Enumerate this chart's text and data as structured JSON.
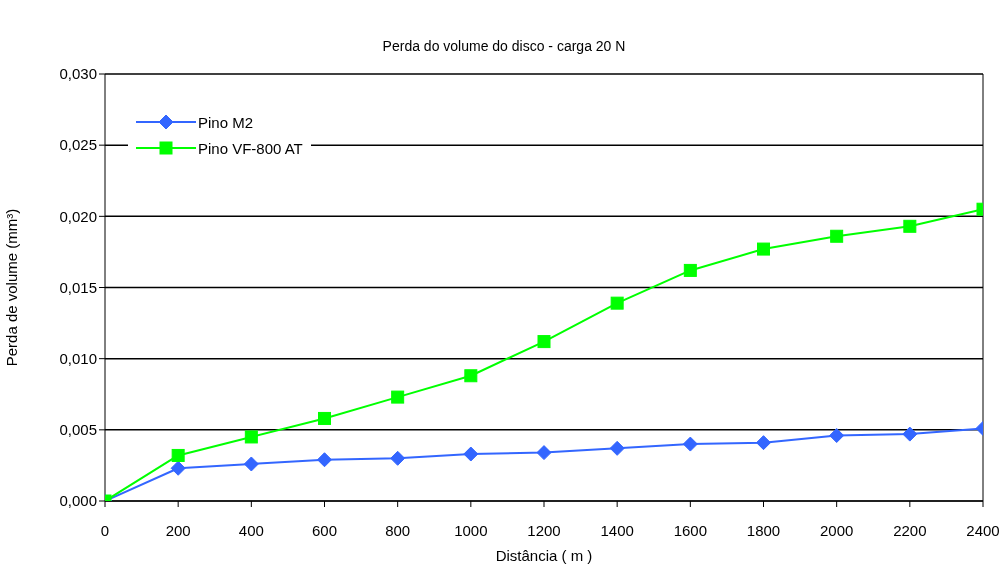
{
  "chart_data": {
    "type": "line",
    "title": "Perda do volume do disco - carga 20 N",
    "xlabel": "Distância ( m )",
    "ylabel": "Perda de volume (mm³)",
    "x": [
      0,
      200,
      400,
      600,
      800,
      1000,
      1200,
      1400,
      1600,
      1800,
      2000,
      2200,
      2400
    ],
    "series": [
      {
        "name": "Pino M2",
        "color": "#3366ff",
        "marker": "diamond",
        "values": [
          0,
          0.0023,
          0.0026,
          0.0029,
          0.003,
          0.0033,
          0.0034,
          0.0037,
          0.004,
          0.0041,
          0.0046,
          0.0047,
          0.0051
        ]
      },
      {
        "name": "Pino VF-800 AT",
        "color": "#00ff00",
        "marker": "square",
        "values": [
          0,
          0.0032,
          0.0045,
          0.0058,
          0.0073,
          0.0088,
          0.0112,
          0.0139,
          0.0162,
          0.0177,
          0.0186,
          0.0193,
          0.0205
        ]
      }
    ],
    "xlim": [
      0,
      2400
    ],
    "xticks": [
      0,
      200,
      400,
      600,
      800,
      1000,
      1200,
      1400,
      1600,
      1800,
      2000,
      2200,
      2400
    ],
    "ylim": [
      0,
      0.03
    ],
    "yticks": [
      {
        "value": 0,
        "label": "0,000"
      },
      {
        "value": 0.005,
        "label": "0,005"
      },
      {
        "value": 0.01,
        "label": "0,010"
      },
      {
        "value": 0.015,
        "label": "0,015"
      },
      {
        "value": 0.02,
        "label": "0,020"
      },
      {
        "value": 0.025,
        "label": "0,025"
      },
      {
        "value": 0.03,
        "label": "0,030"
      }
    ],
    "grid": "y",
    "legend": "top left",
    "line_style": "solid"
  }
}
